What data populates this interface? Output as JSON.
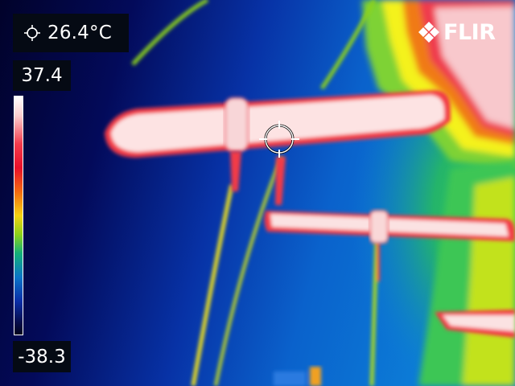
{
  "spot_meter": {
    "icon": "spot-meter-icon",
    "value": "26.4°C"
  },
  "temperature_scale": {
    "max": "37.4",
    "min": "-38.3",
    "palette": [
      "#ffffff",
      "#f43a4c",
      "#f46a10",
      "#f6d312",
      "#8cd21a",
      "#0b74c8",
      "#02031c"
    ]
  },
  "brand": {
    "logo_text": "FLIR"
  },
  "colors": {
    "hot": "#fff1ec",
    "warm_edge": "#f23a46",
    "mid_yellow": "#f4f21c",
    "green": "#6ed23c",
    "cool_blue": "#0a66d6",
    "cold_navy": "#02063a"
  }
}
